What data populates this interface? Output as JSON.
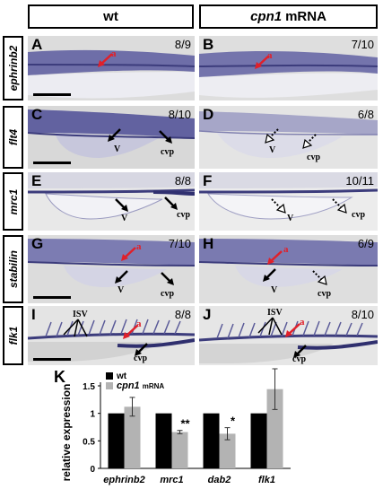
{
  "headers": {
    "wt": "wt",
    "mrna_gene": "cpn1",
    "mrna_suffix": "mRNA"
  },
  "rows": [
    {
      "gene": "ephrinb2"
    },
    {
      "gene": "flt4"
    },
    {
      "gene": "mrc1"
    },
    {
      "gene": "stabilin"
    },
    {
      "gene": "flk1"
    }
  ],
  "panels": {
    "A": {
      "letter": "A",
      "ratio": "8/9",
      "labels": [
        "a"
      ]
    },
    "B": {
      "letter": "B",
      "ratio": "7/10",
      "labels": [
        "a"
      ]
    },
    "C": {
      "letter": "C",
      "ratio": "8/10",
      "labels": [
        "V",
        "cvp"
      ]
    },
    "D": {
      "letter": "D",
      "ratio": "6/8",
      "labels": [
        "V",
        "cvp"
      ]
    },
    "E": {
      "letter": "E",
      "ratio": "8/8",
      "labels": [
        "V",
        "cvp"
      ]
    },
    "F": {
      "letter": "F",
      "ratio": "10/11",
      "labels": [
        "V",
        "cvp"
      ]
    },
    "G": {
      "letter": "G",
      "ratio": "7/10",
      "labels": [
        "a",
        "V",
        "cvp"
      ]
    },
    "H": {
      "letter": "H",
      "ratio": "6/9",
      "labels": [
        "a",
        "V",
        "cvp"
      ]
    },
    "I": {
      "letter": "I",
      "ratio": "8/8",
      "labels": [
        "ISV",
        "a",
        "cvp"
      ]
    },
    "J": {
      "letter": "J",
      "ratio": "8/10",
      "labels": [
        "ISV",
        "a",
        "cvp"
      ]
    }
  },
  "colors": {
    "stain": "#4a4a8c",
    "tissue": "#c9c9dc",
    "arrow_red": "#e0202a",
    "bar_wt": "#000000",
    "bar_mrna": "#b3b3b3"
  },
  "chart_data": {
    "type": "bar",
    "panel_letter": "K",
    "categories": [
      "ephrinb2",
      "mrc1",
      "dab2",
      "flk1"
    ],
    "series": [
      {
        "name": "wt",
        "values": [
          1.0,
          1.0,
          1.0,
          1.0
        ],
        "errors": [
          0,
          0,
          0,
          0
        ]
      },
      {
        "name": "cpn1 mRNA",
        "values": [
          1.12,
          0.66,
          0.63,
          1.44
        ],
        "errors": [
          0.17,
          0.03,
          0.11,
          0.37
        ]
      }
    ],
    "legend": [
      "wt",
      "cpn1 mRNA"
    ],
    "legend_position": "top-left",
    "ylabel": "relative expression",
    "ylim": [
      0,
      1.5
    ],
    "yticks": [
      "0",
      "0.5",
      "1",
      "1.5"
    ],
    "significance": [
      "",
      "**",
      "*",
      ""
    ]
  }
}
